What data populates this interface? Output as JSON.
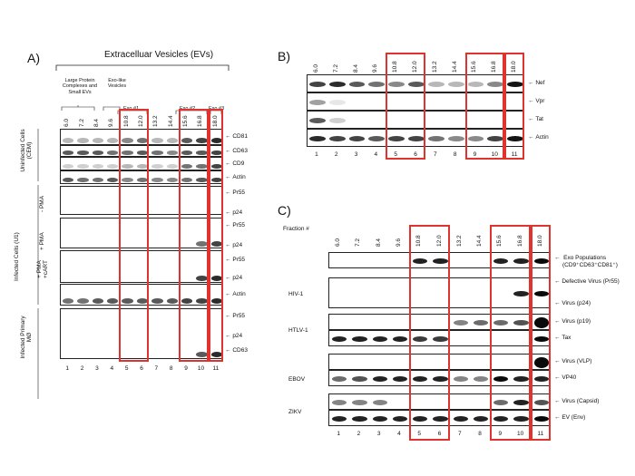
{
  "panel_a": {
    "label": "A)",
    "title": "Extracelluar Vesicles (EVs)",
    "group_large": "Large Protein Complexes and Small EVs",
    "group_exolike": "Exo-like Vesicles",
    "exo1": "Exo #1",
    "exo2": "Exo #2",
    "exo3": "Exo #3",
    "fractions": [
      "6.0",
      "7.2",
      "8.4",
      "9.6",
      "10.8",
      "12.0",
      "13.2",
      "14.4",
      "15.6",
      "16.8",
      "18.0"
    ],
    "lanes": [
      "1",
      "2",
      "3",
      "4",
      "5",
      "6",
      "7",
      "8",
      "9",
      "10",
      "11"
    ],
    "side_uninfected": "Uninfected Cells (CEM)",
    "side_infected_u1": "Infected Cells (U1)",
    "side_primary": "Infected Primary MØ",
    "sub_pma_minus": "- PMA",
    "sub_pma_plus": "+ PMA",
    "sub_pma_cart": "+ PMA +cART",
    "markers": [
      "CD81",
      "CD63",
      "CD9",
      "Actin",
      "Pr55",
      "p24",
      "Pr55",
      "p24",
      "Pr55",
      "p24",
      "Actin",
      "Pr55",
      "p24",
      "CD63"
    ]
  },
  "panel_b": {
    "label": "B)",
    "fractions": [
      "6.0",
      "7.2",
      "8.4",
      "9.6",
      "10.8",
      "12.0",
      "13.2",
      "14.4",
      "15.6",
      "16.8",
      "18.0"
    ],
    "lanes": [
      "1",
      "2",
      "3",
      "4",
      "5",
      "6",
      "7",
      "8",
      "9",
      "10",
      "11"
    ],
    "markers": [
      "Nef",
      "Vpr",
      "Tat",
      "Actin"
    ]
  },
  "panel_c": {
    "label": "C)",
    "fraction_label": "Fraction #",
    "fractions": [
      "6.0",
      "7.2",
      "8.4",
      "9.6",
      "10.8",
      "12.0",
      "13.2",
      "14.4",
      "15.6",
      "16.8",
      "18.0"
    ],
    "lanes": [
      "1",
      "2",
      "3",
      "4",
      "5",
      "6",
      "7",
      "8",
      "9",
      "10",
      "11"
    ],
    "exo_pop_line1": "Exo Populations",
    "exo_pop_line2": "(CD9⁺CD63⁺CD81⁺)",
    "viruses": [
      "HIV-1",
      "HTLV-1",
      "EBOV",
      "ZIKV"
    ],
    "markers": [
      "Defective Virus (Pr55)",
      "Virus (p24)",
      "Virus (p19)",
      "Tax",
      "Virus (VLP)",
      "VP40",
      "Virus (Capsid)",
      "EV (Env)"
    ]
  }
}
